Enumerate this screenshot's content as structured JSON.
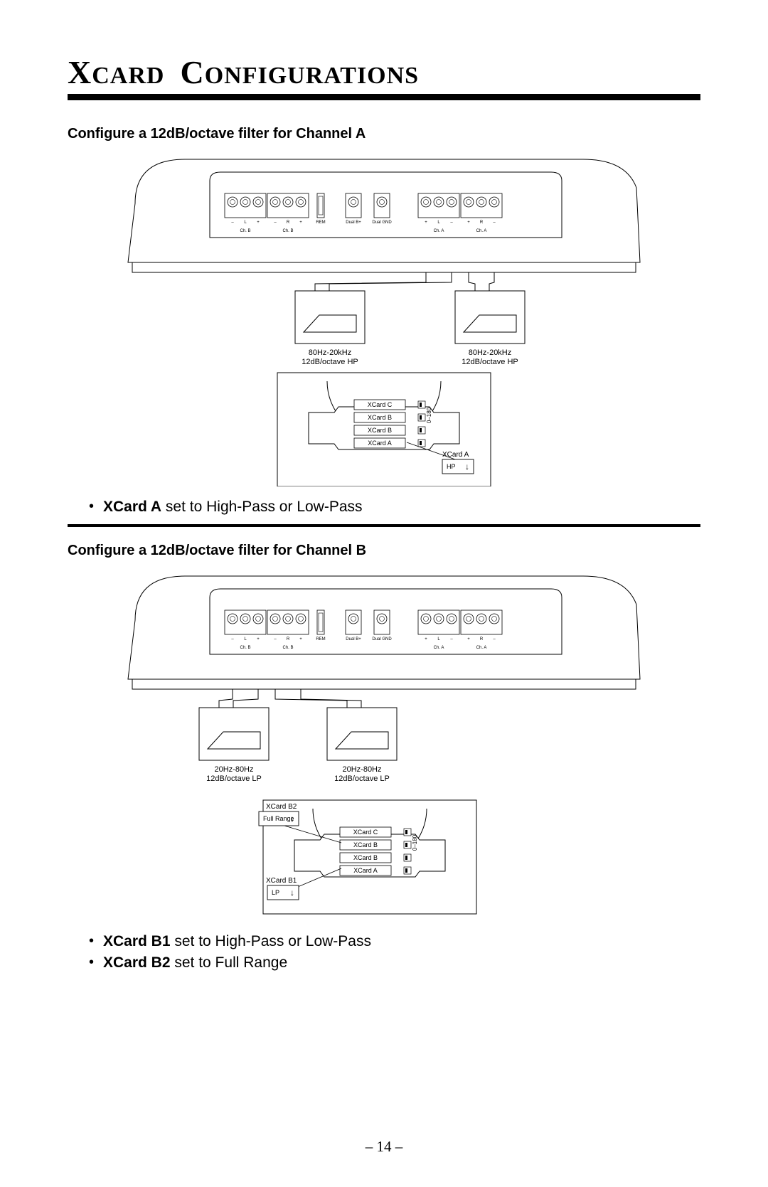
{
  "page_title_html": "X<span class='sm'>CARD</span> C<span class='sm'>ONFIGURATIONS</span>",
  "page_number": "– 14 –",
  "sectionA": {
    "heading": "Configure a 12dB/octave filter for Channel A",
    "bullet_bold": "XCard A",
    "bullet_rest": " set to High-Pass or Low-Pass"
  },
  "sectionB": {
    "heading": "Configure a 12dB/octave filter for Channel B",
    "bullet1_bold": "XCard B1",
    "bullet1_rest": " set to High-Pass or Low-Pass",
    "bullet2_bold": "XCard B2",
    "bullet2_rest": " set to Full Range"
  },
  "amp_labels": {
    "term_top": [
      "–",
      "L",
      "+",
      "–",
      "R",
      "+",
      "REM",
      "Dual B+",
      "Dual GND",
      "+",
      "L",
      "–",
      "+",
      "R",
      "–"
    ],
    "ch_left": "Ch. B",
    "ch_right": "Ch. A"
  },
  "figA": {
    "speaker1_line1": "80Hz-20kHz",
    "speaker1_line2": "12dB/octave HP",
    "speaker2_line1": "80Hz-20kHz",
    "speaker2_line2": "12dB/octave HP",
    "card_rows": [
      "XCard C",
      "XCard B",
      "XCard B",
      "XCard A"
    ],
    "phase": "0–180",
    "callout_label": "XCard A",
    "callout_box": "HP"
  },
  "figB": {
    "speaker1_line1": "20Hz-80Hz",
    "speaker1_line2": "12dB/octave LP",
    "speaker2_line1": "20Hz-80Hz",
    "speaker2_line2": "12dB/octave LP",
    "card_rows": [
      "XCard C",
      "XCard B",
      "XCard B",
      "XCard A"
    ],
    "phase": "0–180",
    "callout1_label": "XCard B2",
    "callout1_box": "Full Range",
    "callout2_label": "XCard B1",
    "callout2_box": "LP"
  },
  "colors": {
    "stroke": "#000000",
    "bg": "#ffffff"
  }
}
